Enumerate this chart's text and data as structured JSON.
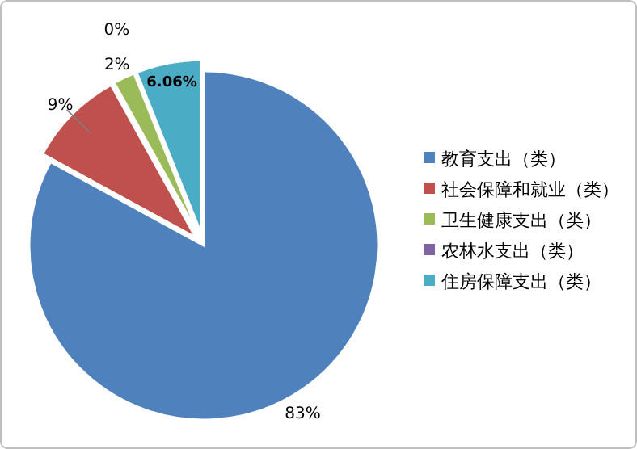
{
  "chart_data": {
    "type": "pie",
    "categories": [
      "教育支出（类）",
      "社会保障和就业（类）",
      "卫生健康支出（类）",
      "农林水支出（类）",
      "住房保障支出（类）"
    ],
    "values": [
      83,
      9,
      2,
      0,
      6.06
    ],
    "colors": [
      "#4f81bd",
      "#c0504d",
      "#9bbb59",
      "#8064a2",
      "#4bacc6"
    ],
    "value_labels": [
      "83%",
      "9%",
      "2%",
      "0%",
      "6.06%"
    ],
    "legend": "right"
  }
}
